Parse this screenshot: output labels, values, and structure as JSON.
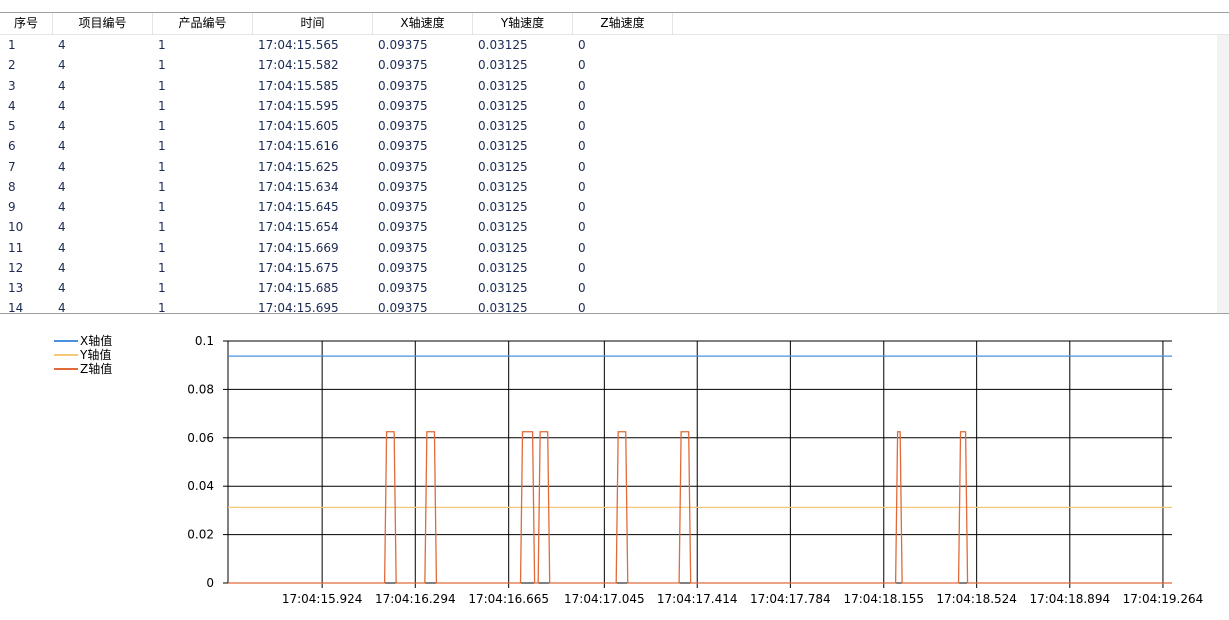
{
  "table": {
    "columns": [
      {
        "label": "序号"
      },
      {
        "label": "项目编号"
      },
      {
        "label": "产品编号"
      },
      {
        "label": "时间"
      },
      {
        "label": "X轴速度"
      },
      {
        "label": "Y轴速度"
      },
      {
        "label": "Z轴速度"
      }
    ],
    "rows": [
      [
        "1",
        "4",
        "1",
        "17:04:15.565",
        "0.09375",
        "0.03125",
        "0"
      ],
      [
        "2",
        "4",
        "1",
        "17:04:15.582",
        "0.09375",
        "0.03125",
        "0"
      ],
      [
        "3",
        "4",
        "1",
        "17:04:15.585",
        "0.09375",
        "0.03125",
        "0"
      ],
      [
        "4",
        "4",
        "1",
        "17:04:15.595",
        "0.09375",
        "0.03125",
        "0"
      ],
      [
        "5",
        "4",
        "1",
        "17:04:15.605",
        "0.09375",
        "0.03125",
        "0"
      ],
      [
        "6",
        "4",
        "1",
        "17:04:15.616",
        "0.09375",
        "0.03125",
        "0"
      ],
      [
        "7",
        "4",
        "1",
        "17:04:15.625",
        "0.09375",
        "0.03125",
        "0"
      ],
      [
        "8",
        "4",
        "1",
        "17:04:15.634",
        "0.09375",
        "0.03125",
        "0"
      ],
      [
        "9",
        "4",
        "1",
        "17:04:15.645",
        "0.09375",
        "0.03125",
        "0"
      ],
      [
        "10",
        "4",
        "1",
        "17:04:15.654",
        "0.09375",
        "0.03125",
        "0"
      ],
      [
        "11",
        "4",
        "1",
        "17:04:15.669",
        "0.09375",
        "0.03125",
        "0"
      ],
      [
        "12",
        "4",
        "1",
        "17:04:15.675",
        "0.09375",
        "0.03125",
        "0"
      ],
      [
        "13",
        "4",
        "1",
        "17:04:15.685",
        "0.09375",
        "0.03125",
        "0"
      ],
      [
        "14",
        "4",
        "1",
        "17:04:15.695",
        "0.09375",
        "0.03125",
        "0"
      ]
    ]
  },
  "chart_data": {
    "type": "line",
    "title": "",
    "xlabel": "",
    "ylabel": "",
    "ylim": [
      0,
      0.1
    ],
    "y_ticks": [
      "0.1",
      "0.08",
      "0.06",
      "0.04",
      "0.02",
      "0"
    ],
    "x_ticks": [
      "17:04:15.924",
      "17:04:16.294",
      "17:04:16.665",
      "17:04:17.045",
      "17:04:17.414",
      "17:04:17.784",
      "17:04:18.155",
      "17:04:18.524",
      "17:04:18.894",
      "17:04:19.264"
    ],
    "grid": true,
    "legend_position": "top-left",
    "series": [
      {
        "name": "X轴值",
        "color": "#4a90e2",
        "constant": 0.09375
      },
      {
        "name": "Y轴值",
        "color": "#f5c97a",
        "constant": 0.03125
      },
      {
        "name": "Z轴值",
        "color": "#e06a3a",
        "spike_value": 0.0625,
        "spikes": [
          [
            16.18,
            16.21
          ],
          [
            16.34,
            16.37
          ],
          [
            16.72,
            16.76
          ],
          [
            16.79,
            16.82
          ],
          [
            17.1,
            17.13
          ],
          [
            17.35,
            17.38
          ],
          [
            18.21,
            18.22
          ],
          [
            18.46,
            18.48
          ]
        ]
      }
    ],
    "x_range_seconds_after_17_04": [
      15.55,
      19.3
    ]
  }
}
